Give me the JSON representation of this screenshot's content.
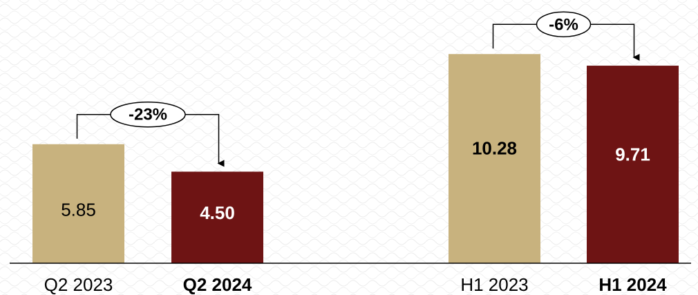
{
  "chart_data": {
    "type": "bar",
    "title": "",
    "xlabel": "",
    "ylabel": "",
    "ylim": [
      0,
      11
    ],
    "grid": false,
    "colors": {
      "prior_year": "#c8b27e",
      "current_year": "#6e1414",
      "background_pattern": "#efefef",
      "axis": "#000000"
    },
    "groups": [
      {
        "change": "-23%",
        "bars": [
          {
            "category": "Q2 2023",
            "value": 5.85,
            "label": "5.85",
            "period": "prior",
            "bold": false
          },
          {
            "category": "Q2 2024",
            "value": 4.5,
            "label": "4.50",
            "period": "current",
            "bold": true
          }
        ]
      },
      {
        "change": "-6%",
        "bars": [
          {
            "category": "H1 2023",
            "value": 10.28,
            "label": "10.28",
            "period": "prior",
            "bold": false
          },
          {
            "category": "H1 2024",
            "value": 9.71,
            "label": "9.71",
            "period": "current",
            "bold": true
          }
        ]
      }
    ]
  }
}
